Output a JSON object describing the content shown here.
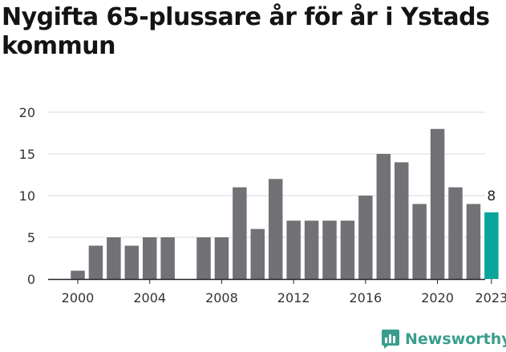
{
  "title": "Nygifta 65-plussare år för år i Ystads kommun",
  "brand": {
    "name": "Newsworthy",
    "color": "#3a9e8d",
    "icon": "bar-chart-logo-icon"
  },
  "colors": {
    "bar": "#727176",
    "highlight": "#0aa59a",
    "grid": "#d9d9d9",
    "axis": "#222222"
  },
  "chart_data": {
    "type": "bar",
    "x": [
      2000,
      2001,
      2002,
      2003,
      2004,
      2005,
      2006,
      2007,
      2008,
      2009,
      2010,
      2011,
      2012,
      2013,
      2014,
      2015,
      2016,
      2017,
      2018,
      2019,
      2020,
      2021,
      2022,
      2023
    ],
    "values": [
      1,
      4,
      5,
      4,
      5,
      5,
      null,
      5,
      5,
      11,
      6,
      12,
      7,
      7,
      7,
      7,
      10,
      15,
      14,
      9,
      18,
      11,
      9,
      8
    ],
    "highlight_index": 23,
    "data_labels": [
      {
        "x": 2023,
        "text": "8"
      }
    ],
    "yticks": [
      0,
      5,
      10,
      15,
      20
    ],
    "xticks": [
      2000,
      2004,
      2008,
      2012,
      2016,
      2020,
      2023
    ],
    "ylim": [
      0,
      20
    ],
    "grid": "horizontal"
  }
}
